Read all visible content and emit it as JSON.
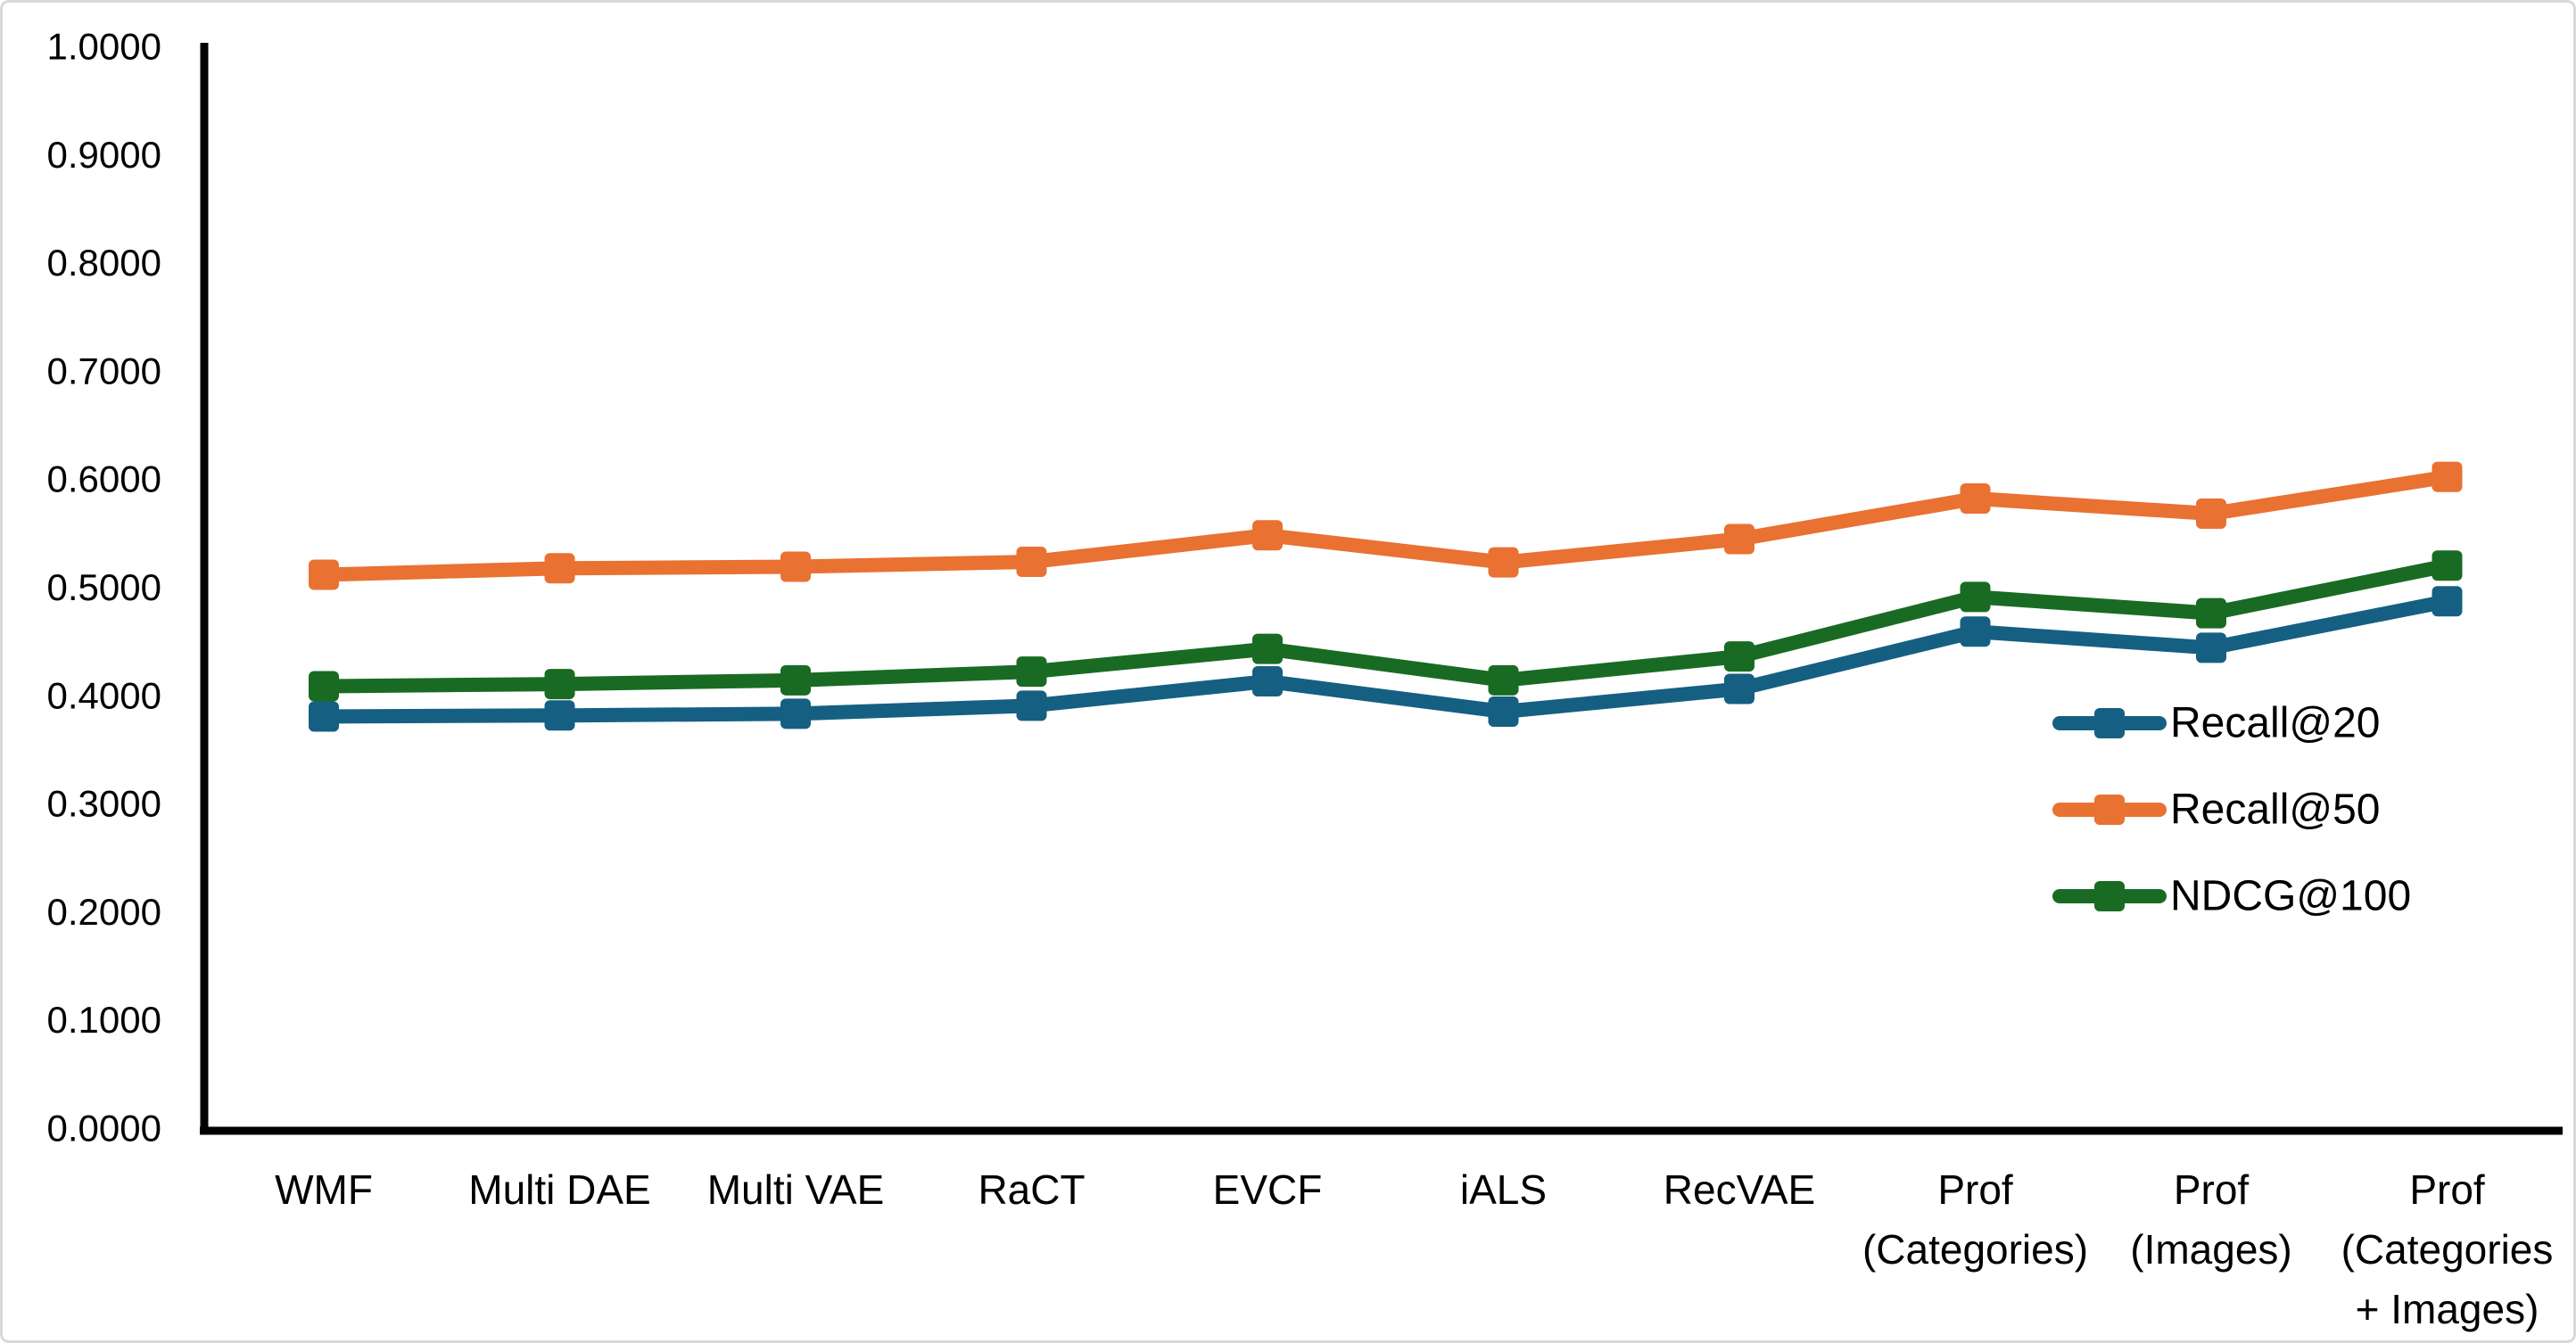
{
  "figure": {
    "background": "#ffffff",
    "border_color": "#d9d9d9"
  },
  "chart_data": {
    "type": "line",
    "title": "",
    "xlabel": "",
    "ylabel": "",
    "grid": false,
    "legend_position": "right-middle",
    "axis_color": "#000000",
    "text_color": "#000000",
    "categories": [
      "WMF",
      "Multi DAE",
      "Multi VAE",
      "RaCT",
      "EVCF",
      "iALS",
      "RecVAE",
      "Prof (Categories)",
      "Prof (Images)",
      "Prof (Categories + Images)"
    ],
    "category_label_lines": [
      [
        "WMF"
      ],
      [
        "Multi DAE"
      ],
      [
        "Multi VAE"
      ],
      [
        "RaCT"
      ],
      [
        "EVCF"
      ],
      [
        "iALS"
      ],
      [
        "RecVAE"
      ],
      [
        "Prof",
        "(Categories)"
      ],
      [
        "Prof",
        "(Images)"
      ],
      [
        "Prof",
        "(Categories",
        "+ Images)"
      ]
    ],
    "series": [
      {
        "name": "Recall@20",
        "color": "#156082",
        "values": [
          0.3805,
          0.3815,
          0.383,
          0.3905,
          0.413,
          0.385,
          0.406,
          0.459,
          0.444,
          0.487
        ]
      },
      {
        "name": "Recall@50",
        "color": "#E97132",
        "values": [
          0.5115,
          0.5175,
          0.519,
          0.5235,
          0.548,
          0.523,
          0.5445,
          0.582,
          0.568,
          0.602
        ]
      },
      {
        "name": "NDCG@100",
        "color": "#196B24",
        "values": [
          0.4085,
          0.4105,
          0.414,
          0.422,
          0.443,
          0.414,
          0.436,
          0.491,
          0.476,
          0.52
        ]
      }
    ],
    "yaxis": {
      "min": 0.0,
      "max": 1.0,
      "step": 0.1,
      "decimals": 4,
      "ylim": [
        0.0,
        1.0
      ]
    }
  }
}
